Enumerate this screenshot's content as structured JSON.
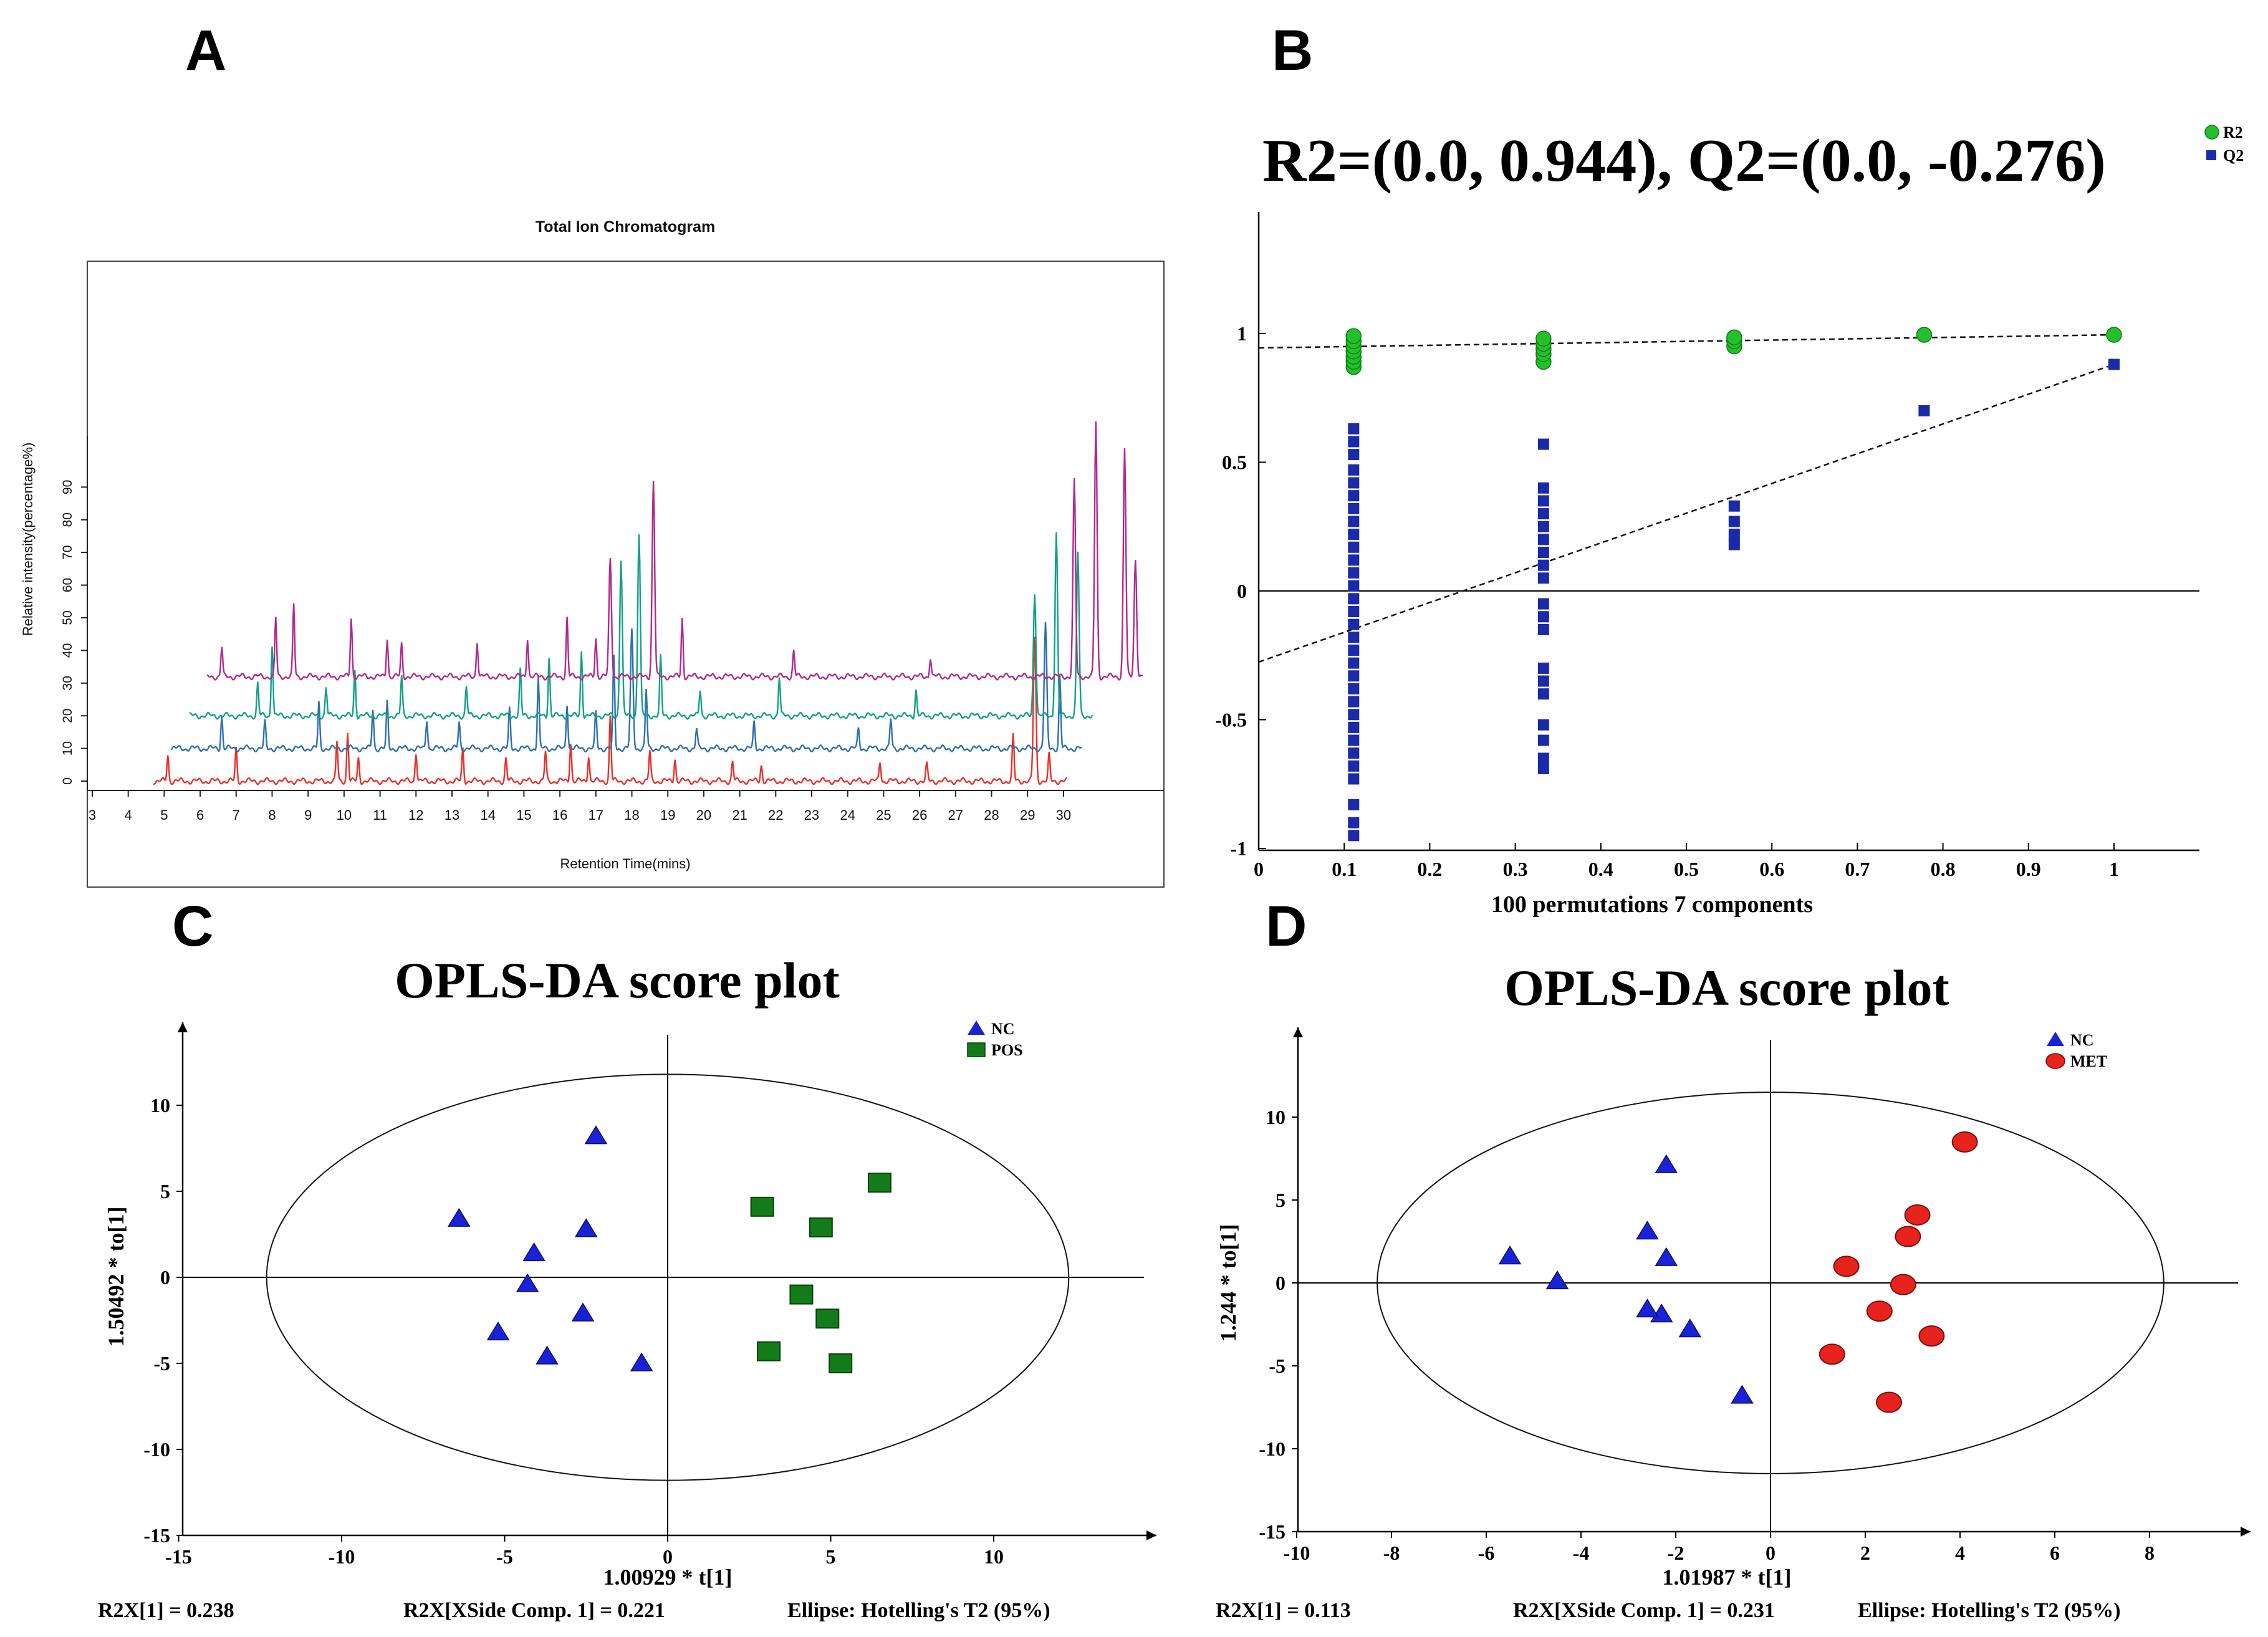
{
  "panels": {
    "A": {
      "letter": "A",
      "chart_data": {
        "type": "line",
        "title": "Total Ion Chromatogram",
        "xlabel": "Retention Time(mins)",
        "ylabel": "Relative intensity(percentage%)",
        "xlim": [
          3,
          32.5
        ],
        "ylim": [
          0,
          130
        ],
        "x_ticks": [
          "3",
          "4",
          "5",
          "6",
          "7",
          "8",
          "9",
          "10",
          "11",
          "12",
          "13",
          "14",
          "15",
          "16",
          "17",
          "18",
          "19",
          "20",
          "21",
          "22",
          "23",
          "24",
          "25",
          "26",
          "27",
          "28",
          "29",
          "30"
        ],
        "y_ticks": [
          "0",
          "10",
          "20",
          "30",
          "40",
          "50",
          "60",
          "70",
          "80",
          "90"
        ],
        "grid": false,
        "legend": "none",
        "series": [
          {
            "color": "#e8302a",
            "offset": 0,
            "end": 30.1,
            "peaks": [
              [
                5.1,
                8
              ],
              [
                7.0,
                10
              ],
              [
                9.8,
                12
              ],
              [
                10.1,
                15
              ],
              [
                10.4,
                7
              ],
              [
                12.0,
                9
              ],
              [
                13.3,
                10
              ],
              [
                14.5,
                7
              ],
              [
                15.6,
                9
              ],
              [
                16.3,
                12
              ],
              [
                16.8,
                8
              ],
              [
                17.4,
                20
              ],
              [
                18.5,
                9
              ],
              [
                19.2,
                7
              ],
              [
                20.8,
                6
              ],
              [
                21.6,
                5
              ],
              [
                24.9,
                6
              ],
              [
                26.2,
                5
              ],
              [
                28.6,
                14
              ],
              [
                29.2,
                44
              ],
              [
                29.6,
                8
              ]
            ]
          },
          {
            "color": "#2e6fb2",
            "offset": 10,
            "end": 30.5,
            "peaks": [
              [
                6.6,
                10
              ],
              [
                7.8,
                8
              ],
              [
                9.3,
                14
              ],
              [
                10.8,
                12
              ],
              [
                11.2,
                14
              ],
              [
                12.3,
                9
              ],
              [
                13.2,
                8
              ],
              [
                14.6,
                12
              ],
              [
                15.4,
                22
              ],
              [
                16.2,
                14
              ],
              [
                17.0,
                11
              ],
              [
                17.5,
                28
              ],
              [
                18.0,
                36
              ],
              [
                18.4,
                18
              ],
              [
                19.8,
                6
              ],
              [
                21.4,
                8
              ],
              [
                24.3,
                6
              ],
              [
                25.2,
                9
              ],
              [
                29.5,
                38
              ],
              [
                29.9,
                22
              ]
            ]
          },
          {
            "color": "#12a085",
            "offset": 20,
            "end": 30.8,
            "peaks": [
              [
                7.6,
                10
              ],
              [
                8.0,
                22
              ],
              [
                9.5,
                9
              ],
              [
                10.3,
                14
              ],
              [
                11.6,
                12
              ],
              [
                13.4,
                9
              ],
              [
                14.9,
                14
              ],
              [
                15.7,
                18
              ],
              [
                16.6,
                20
              ],
              [
                17.7,
                48
              ],
              [
                18.2,
                56
              ],
              [
                18.8,
                18
              ],
              [
                19.9,
                8
              ],
              [
                22.1,
                12
              ],
              [
                25.9,
                8
              ],
              [
                29.2,
                38
              ],
              [
                29.8,
                56
              ],
              [
                30.4,
                50
              ]
            ]
          },
          {
            "color": "#b02a8f",
            "offset": 32,
            "end": 32.2,
            "peaks": [
              [
                6.6,
                9
              ],
              [
                8.1,
                18
              ],
              [
                8.6,
                22
              ],
              [
                10.2,
                18
              ],
              [
                11.2,
                12
              ],
              [
                11.6,
                10
              ],
              [
                13.7,
                11
              ],
              [
                15.1,
                12
              ],
              [
                16.2,
                18
              ],
              [
                17.0,
                12
              ],
              [
                17.4,
                36
              ],
              [
                18.6,
                60
              ],
              [
                19.4,
                18
              ],
              [
                22.5,
                8
              ],
              [
                26.3,
                6
              ],
              [
                30.3,
                60
              ],
              [
                30.9,
                78
              ],
              [
                31.7,
                70
              ],
              [
                32.0,
                36
              ]
            ]
          }
        ]
      }
    },
    "B": {
      "letter": "B",
      "chart_data": {
        "type": "scatter",
        "title": "R2=(0.0, 0.944), Q2=(0.0, -0.276)",
        "xlabel": "100 permutations 7 components",
        "ylabel": "",
        "xlim": [
          0,
          1.1
        ],
        "ylim": [
          -1,
          1.5
        ],
        "x_ticks": [
          "0",
          "0.1",
          "0.2",
          "0.3",
          "0.4",
          "0.5",
          "0.6",
          "0.7",
          "0.8",
          "0.9",
          "1"
        ],
        "y_ticks": [
          "-1",
          "-0.5",
          "0",
          "0.5",
          "1"
        ],
        "legend_position": "top-right",
        "series": [
          {
            "name": "R2",
            "color": "#22c02a",
            "marker": "circle",
            "points": [
              [
                0.111,
                0.87
              ],
              [
                0.111,
                0.89
              ],
              [
                0.111,
                0.91
              ],
              [
                0.111,
                0.93
              ],
              [
                0.111,
                0.95
              ],
              [
                0.111,
                0.97
              ],
              [
                0.111,
                0.99
              ],
              [
                0.333,
                0.89
              ],
              [
                0.333,
                0.92
              ],
              [
                0.333,
                0.94
              ],
              [
                0.333,
                0.96
              ],
              [
                0.333,
                0.98
              ],
              [
                0.556,
                0.95
              ],
              [
                0.556,
                0.97
              ],
              [
                0.556,
                0.985
              ],
              [
                0.778,
                0.995
              ],
              [
                1.0,
                0.995
              ]
            ]
          },
          {
            "name": "Q2",
            "color": "#1a2aa8",
            "marker": "square",
            "points": [
              [
                0.111,
                0.63
              ],
              [
                0.111,
                0.58
              ],
              [
                0.111,
                0.53
              ],
              [
                0.111,
                0.47
              ],
              [
                0.111,
                0.42
              ],
              [
                0.111,
                0.37
              ],
              [
                0.111,
                0.32
              ],
              [
                0.111,
                0.27
              ],
              [
                0.111,
                0.22
              ],
              [
                0.111,
                0.17
              ],
              [
                0.111,
                0.12
              ],
              [
                0.111,
                0.07
              ],
              [
                0.111,
                0.02
              ],
              [
                0.111,
                -0.03
              ],
              [
                0.111,
                -0.08
              ],
              [
                0.111,
                -0.13
              ],
              [
                0.111,
                -0.18
              ],
              [
                0.111,
                -0.23
              ],
              [
                0.111,
                -0.28
              ],
              [
                0.111,
                -0.33
              ],
              [
                0.111,
                -0.38
              ],
              [
                0.111,
                -0.43
              ],
              [
                0.111,
                -0.48
              ],
              [
                0.111,
                -0.53
              ],
              [
                0.111,
                -0.58
              ],
              [
                0.111,
                -0.63
              ],
              [
                0.111,
                -0.68
              ],
              [
                0.111,
                -0.73
              ],
              [
                0.111,
                -0.83
              ],
              [
                0.111,
                -0.9
              ],
              [
                0.111,
                -0.95
              ],
              [
                0.333,
                0.57
              ],
              [
                0.333,
                0.4
              ],
              [
                0.333,
                0.35
              ],
              [
                0.333,
                0.3
              ],
              [
                0.333,
                0.25
              ],
              [
                0.333,
                0.2
              ],
              [
                0.333,
                0.15
              ],
              [
                0.333,
                0.1
              ],
              [
                0.333,
                0.05
              ],
              [
                0.333,
                -0.05
              ],
              [
                0.333,
                -0.1
              ],
              [
                0.333,
                -0.15
              ],
              [
                0.333,
                -0.3
              ],
              [
                0.333,
                -0.35
              ],
              [
                0.333,
                -0.4
              ],
              [
                0.333,
                -0.52
              ],
              [
                0.333,
                -0.58
              ],
              [
                0.333,
                -0.65
              ],
              [
                0.333,
                -0.69
              ],
              [
                0.556,
                0.33
              ],
              [
                0.556,
                0.27
              ],
              [
                0.556,
                0.22
              ],
              [
                0.556,
                0.18
              ],
              [
                0.778,
                0.7
              ],
              [
                1.0,
                0.88
              ]
            ]
          }
        ],
        "regression_lines": [
          {
            "name": "R2",
            "from": [
              0,
              0.944
            ],
            "to": [
              1.0,
              0.995
            ]
          },
          {
            "name": "Q2",
            "from": [
              0,
              -0.276
            ],
            "to": [
              1.0,
              0.88
            ]
          }
        ]
      }
    },
    "C": {
      "letter": "C",
      "chart_data": {
        "type": "scatter",
        "title": "OPLS-DA score plot",
        "xlabel": "1.00929 * t[1]",
        "ylabel": "1.50492 * to[1]",
        "xlim": [
          -15,
          15
        ],
        "ylim": [
          -15,
          15
        ],
        "x_ticks": [
          "-15",
          "-10",
          "-5",
          "0",
          "5",
          "10"
        ],
        "y_ticks": [
          "-15",
          "-10",
          "-5",
          "0",
          "5",
          "10"
        ],
        "legend_position": "top-right",
        "ellipse": {
          "cx": 0,
          "cy": 0,
          "rx": 12.3,
          "ry": 11.8
        },
        "series": [
          {
            "name": "NC",
            "color": "#1a22d8",
            "marker": "triangle",
            "points": [
              [
                -2.2,
                8.2
              ],
              [
                -6.4,
                3.4
              ],
              [
                -2.5,
                2.8
              ],
              [
                -4.1,
                1.4
              ],
              [
                -4.3,
                -0.4
              ],
              [
                -2.6,
                -2.1
              ],
              [
                -5.2,
                -3.2
              ],
              [
                -3.7,
                -4.6
              ],
              [
                -0.8,
                -5.0
              ]
            ]
          },
          {
            "name": "POS",
            "color": "#137c1a",
            "marker": "square",
            "points": [
              [
                6.5,
                5.5
              ],
              [
                2.9,
                4.1
              ],
              [
                4.7,
                2.9
              ],
              [
                4.1,
                -1.0
              ],
              [
                4.9,
                -2.4
              ],
              [
                3.1,
                -4.3
              ],
              [
                5.3,
                -5.0
              ]
            ]
          }
        ],
        "footer": {
          "left": "R2X[1] = 0.238",
          "middle": "R2X[XSide Comp. 1] = 0.221",
          "right": "Ellipse: Hotelling's T2 (95%)"
        }
      }
    },
    "D": {
      "letter": "D",
      "chart_data": {
        "type": "scatter",
        "title": "OPLS-DA score plot",
        "xlabel": "1.01987 * t[1]",
        "ylabel": "1.244 * to[1]",
        "xlim": [
          -10,
          10
        ],
        "ylim": [
          -15,
          15
        ],
        "x_ticks": [
          "-10",
          "-8",
          "-6",
          "-4",
          "-2",
          "0",
          "2",
          "4",
          "6",
          "8"
        ],
        "y_ticks": [
          "-15",
          "-10",
          "-5",
          "0",
          "5",
          "10"
        ],
        "legend_position": "top-right",
        "ellipse": {
          "cx": 0,
          "cy": 0,
          "rx": 8.3,
          "ry": 11.5
        },
        "series": [
          {
            "name": "NC",
            "color": "#1a22d8",
            "marker": "triangle",
            "points": [
              [
                -2.2,
                7.1
              ],
              [
                -5.5,
                1.6
              ],
              [
                -4.5,
                0.1
              ],
              [
                -2.6,
                3.1
              ],
              [
                -2.2,
                1.5
              ],
              [
                -2.3,
                -1.9
              ],
              [
                -2.6,
                -1.6
              ],
              [
                -1.7,
                -2.8
              ],
              [
                -0.6,
                -6.8
              ]
            ]
          },
          {
            "name": "MET",
            "color": "#e8231d",
            "marker": "circle",
            "points": [
              [
                4.1,
                8.5
              ],
              [
                3.1,
                4.1
              ],
              [
                2.9,
                2.8
              ],
              [
                1.6,
                1.0
              ],
              [
                2.8,
                -0.1
              ],
              [
                2.3,
                -1.7
              ],
              [
                3.4,
                -3.2
              ],
              [
                1.3,
                -4.3
              ],
              [
                2.5,
                -7.2
              ]
            ]
          }
        ],
        "footer": {
          "left": "R2X[1] = 0.113",
          "middle": "R2X[XSide Comp. 1] = 0.231",
          "right": "Ellipse: Hotelling's T2 (95%)"
        }
      }
    }
  }
}
